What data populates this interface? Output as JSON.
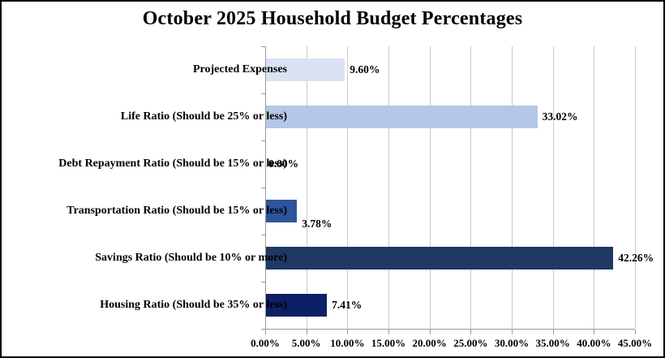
{
  "chart_data": {
    "type": "bar",
    "orientation": "horizontal",
    "title": "October 2025 Household Budget Percentages",
    "categories": [
      "Projected Expenses",
      "Life Ratio (Should be 25% or less)",
      "Debt Repayment Ratio (Should be 15% or less)",
      "Transportation Ratio (Should be 15% or less)",
      "Savings Ratio (Should be 10% or more)",
      "Housing Ratio (Should be 35% or less)"
    ],
    "values": [
      9.6,
      33.02,
      0.0,
      3.78,
      42.26,
      7.41
    ],
    "value_labels": [
      "9.60%",
      "33.02%",
      "0.00%",
      "3.78%",
      "42.26%",
      "7.41%"
    ],
    "bar_colors": [
      "#D9E2F3",
      "#B4C7E7",
      null,
      "#2E559C",
      "#1F3864",
      "#0E2065"
    ],
    "xlabel": "",
    "ylabel": "",
    "xlim": [
      0,
      45
    ],
    "tick_step": 5,
    "tick_labels": [
      "0.00%",
      "5.00%",
      "10.00%",
      "15.00%",
      "20.00%",
      "25.00%",
      "30.00%",
      "35.00%",
      "40.00%",
      "45.00%"
    ],
    "grid": true,
    "legend": "none",
    "label_below_bar_index": 3,
    "colors": {
      "gridline": "#c9c9c9",
      "axis": "#9b9b9b",
      "text": "#000000",
      "background": "#ffffff",
      "border": "#000000"
    }
  }
}
